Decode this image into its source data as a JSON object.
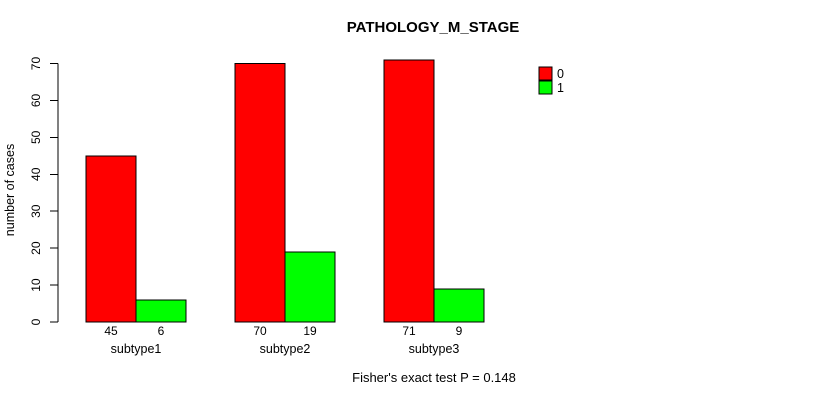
{
  "chart_data": {
    "type": "bar",
    "title": "PATHOLOGY_M_STAGE",
    "ylabel": "number of cases",
    "xlabel": "",
    "categories": [
      "subtype1",
      "subtype2",
      "subtype3"
    ],
    "series": [
      {
        "name": "0",
        "color": "#ff0000",
        "values": [
          45,
          70,
          71
        ]
      },
      {
        "name": "1",
        "color": "#00ff00",
        "values": [
          6,
          19,
          9
        ]
      }
    ],
    "bar_value_labels": [
      [
        "45",
        "6"
      ],
      [
        "70",
        "19"
      ],
      [
        "71",
        "9"
      ]
    ],
    "ylim": [
      0,
      70
    ],
    "yticks": [
      0,
      10,
      20,
      30,
      40,
      50,
      60,
      70
    ],
    "grid": false,
    "legend": {
      "position": "top-right",
      "entries": [
        {
          "label": "0",
          "color": "#ff0000"
        },
        {
          "label": "1",
          "color": "#00ff00"
        }
      ]
    },
    "annotation": "Fisher's exact test P = 0.148",
    "colors": {
      "bar_border": "#000000",
      "axis": "#000000",
      "background": "#ffffff"
    }
  }
}
